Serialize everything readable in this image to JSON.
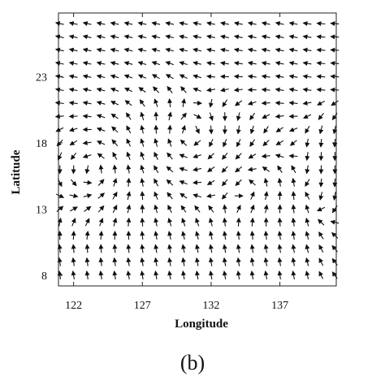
{
  "panel_label": "(b)",
  "chart_data": {
    "type": "vector_field",
    "title": "",
    "xlabel": "Longitude",
    "ylabel": "Latitude",
    "xlim": [
      120.9,
      141.1
    ],
    "ylim": [
      7.2,
      27.8
    ],
    "xticks": [
      122,
      127,
      132,
      137
    ],
    "yticks": [
      8,
      13,
      18,
      23
    ],
    "x_tick_labels": [
      "122",
      "127",
      "132",
      "137"
    ],
    "y_tick_labels": [
      "8",
      "13",
      "18",
      "23"
    ],
    "grid": false,
    "legend": "none",
    "arrow_color": "#111111",
    "grid_spacing_deg": 1,
    "x_range": [
      121,
      141
    ],
    "y_range": [
      8,
      27
    ],
    "feature_notes": [
      "easterly flow along the top rows",
      "anticyclonic circulation near 130E 18N",
      "cyclonic circulation near 123E 16N",
      "southerly flow in the lower-left region"
    ]
  }
}
